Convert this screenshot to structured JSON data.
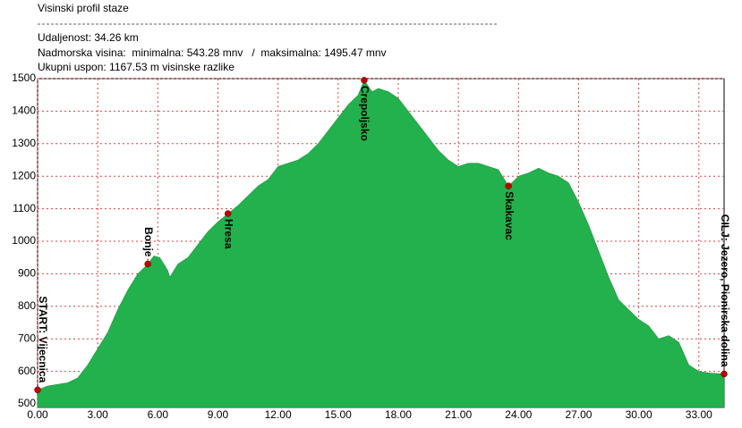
{
  "header": {
    "title": "Visinski profil staze",
    "distance": "Udaljenost: 34.26 km",
    "altitude": "Nadmorska visina:  minimalna: 543.28 mnv   /  maksimalna: 1495.47 mnv",
    "ascent": "Ukupni uspon: 1167.53 m visinske razlike"
  },
  "chart_data": {
    "type": "area",
    "color": "#22b14c",
    "marker_color": "#c00000",
    "grid_color": "#e04040",
    "grid": true,
    "x": [
      0,
      0.5,
      1.5,
      2,
      2.5,
      3,
      3.5,
      4,
      4.5,
      5,
      5.5,
      5.8,
      6.1,
      6.5,
      6.6,
      7,
      7.5,
      8,
      8.5,
      9,
      9.5,
      10,
      10.5,
      11,
      11.5,
      12,
      12.5,
      13,
      13.5,
      14,
      14.5,
      15,
      15.5,
      16,
      16.3,
      16.7,
      17,
      17.5,
      18,
      18.5,
      19,
      19.5,
      20,
      20.5,
      21,
      21.5,
      22,
      22.5,
      23,
      23.5,
      24,
      24.5,
      25,
      25.5,
      26,
      26.5,
      27,
      27.5,
      28,
      28.5,
      29,
      29.5,
      30,
      30.5,
      31,
      31.5,
      32,
      32.5,
      33,
      33.5,
      34.26
    ],
    "values": [
      543,
      555,
      565,
      580,
      620,
      670,
      720,
      790,
      850,
      900,
      930,
      955,
      950,
      910,
      890,
      930,
      950,
      990,
      1030,
      1060,
      1085,
      1110,
      1140,
      1170,
      1190,
      1230,
      1240,
      1250,
      1270,
      1300,
      1340,
      1380,
      1420,
      1450,
      1495,
      1460,
      1470,
      1460,
      1440,
      1400,
      1360,
      1320,
      1280,
      1250,
      1230,
      1240,
      1240,
      1230,
      1220,
      1170,
      1200,
      1210,
      1225,
      1210,
      1200,
      1180,
      1120,
      1050,
      970,
      890,
      820,
      790,
      760,
      740,
      700,
      710,
      690,
      620,
      600,
      595,
      592
    ],
    "markers": [
      {
        "name": "START: Vijecnica",
        "x": 0,
        "y": 543
      },
      {
        "name": "Bonje",
        "x": 5.5,
        "y": 930
      },
      {
        "name": "Hresa",
        "x": 9.5,
        "y": 1085
      },
      {
        "name": "Crepoljsko",
        "x": 16.3,
        "y": 1495
      },
      {
        "name": "Skakavac",
        "x": 23.5,
        "y": 1170
      },
      {
        "name": "CILJ: Jezero, Pionirska dolina",
        "x": 34.26,
        "y": 592
      }
    ],
    "xlim": [
      0,
      34.26
    ],
    "ylim": [
      500,
      1500
    ],
    "xticks": [
      {
        "value": 0,
        "label": "0.00"
      },
      {
        "value": 3,
        "label": "3.00"
      },
      {
        "value": 6,
        "label": "6.00"
      },
      {
        "value": 9,
        "label": "9.00"
      },
      {
        "value": 12,
        "label": "12.00"
      },
      {
        "value": 15,
        "label": "15.00"
      },
      {
        "value": 18,
        "label": "18.00"
      },
      {
        "value": 21,
        "label": "21.00"
      },
      {
        "value": 24,
        "label": "24.00"
      },
      {
        "value": 27,
        "label": "27.00"
      },
      {
        "value": 30,
        "label": "30.00"
      },
      {
        "value": 33,
        "label": "33.00"
      }
    ],
    "yticks": [
      500,
      600,
      700,
      800,
      900,
      1000,
      1100,
      1200,
      1300,
      1400,
      1500
    ]
  }
}
